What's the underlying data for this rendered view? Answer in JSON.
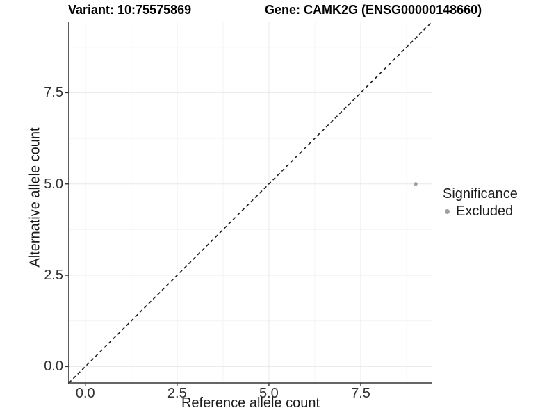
{
  "header": {
    "title_left": "Variant: 10:75575869",
    "title_right": "Gene: CAMK2G (ENSG00000148660)"
  },
  "chart_data": {
    "type": "scatter",
    "xlabel": "Reference allele count",
    "ylabel": "Alternative allele count",
    "xlim": [
      -0.45,
      9.45
    ],
    "ylim": [
      -0.45,
      9.45
    ],
    "x_ticks": {
      "values": [
        0,
        2.5,
        5,
        7.5
      ],
      "labels": [
        "0.0",
        "2.5",
        "5.0",
        "7.5"
      ]
    },
    "y_ticks": {
      "values": [
        0,
        2.5,
        5,
        7.5
      ],
      "labels": [
        "0.0",
        "2.5",
        "5.0",
        "7.5"
      ]
    },
    "grid": {
      "major": true,
      "minor": true,
      "major_color": "#e8e8e8",
      "minor_color": "#f4f4f4"
    },
    "reference_line": {
      "kind": "abline",
      "slope": 1,
      "intercept": 0,
      "linetype": "dashed",
      "color": "#1c1c1c"
    },
    "points": [
      {
        "x": 9,
        "y": 5,
        "series": "Excluded"
      }
    ],
    "point_radius_px": 2.6,
    "legend": {
      "title": "Significance",
      "position": "right",
      "entries": [
        {
          "label": "Excluded",
          "color": "#a0a0a0"
        }
      ]
    },
    "axis_color": "#333333"
  }
}
